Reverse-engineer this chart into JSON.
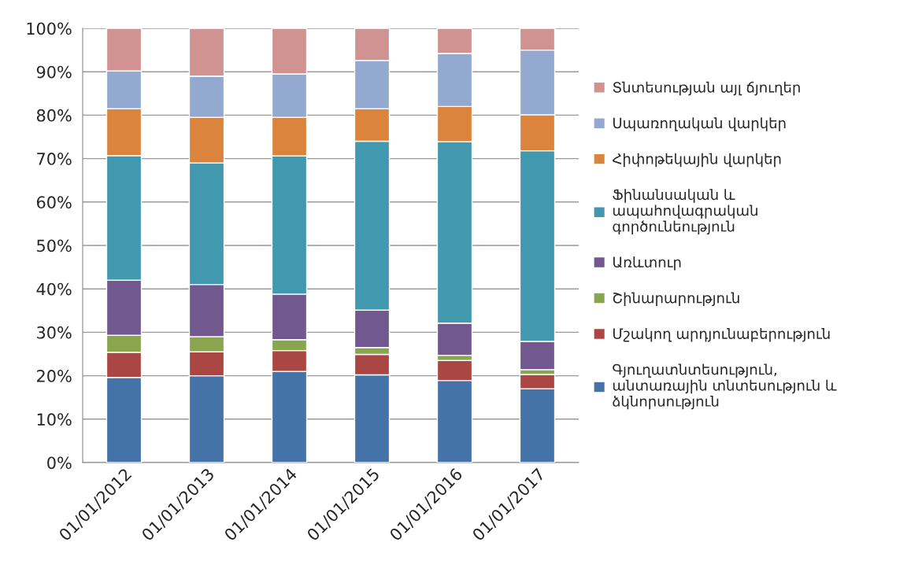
{
  "chart_data": {
    "type": "bar",
    "stacked": true,
    "categories": [
      "01/01/2012",
      "01/01/2013",
      "01/01/2014",
      "01/01/2015",
      "01/01/2016",
      "01/01/2017"
    ],
    "series": [
      {
        "name": "Գյուղատնտեսություն,\nանտառային տնտեսություն և\nձկնորսություն",
        "color": "#4572a7",
        "values": [
          19.6,
          20.0,
          21.0,
          20.2,
          18.9,
          17.0
        ]
      },
      {
        "name": "Մշակող արդյունաբերություն",
        "color": "#aa4643",
        "values": [
          5.8,
          5.5,
          4.8,
          4.7,
          4.6,
          3.3
        ]
      },
      {
        "name": "Շինարարություն",
        "color": "#89a54e",
        "values": [
          3.9,
          3.5,
          2.5,
          1.6,
          1.2,
          1.1
        ]
      },
      {
        "name": "Առևտուր",
        "color": "#71588f",
        "values": [
          12.7,
          12.0,
          10.5,
          8.6,
          7.4,
          6.5
        ]
      },
      {
        "name": "Ֆինանսական և\nապահովագրական\nգործունեություն",
        "color": "#4198af",
        "values": [
          28.7,
          28.0,
          31.8,
          38.9,
          41.8,
          43.9
        ]
      },
      {
        "name": "Հիփոթեկային վարկեր",
        "color": "#db843d",
        "values": [
          10.8,
          10.5,
          8.9,
          7.5,
          8.1,
          8.3
        ]
      },
      {
        "name": "Սպառողական վարկեր",
        "color": "#93a9cf",
        "values": [
          8.7,
          9.5,
          10.0,
          11.1,
          12.2,
          14.9
        ]
      },
      {
        "name": "Տնտեսության այլ ճյուղեր",
        "color": "#d19392",
        "values": [
          9.8,
          11.0,
          10.5,
          7.4,
          5.8,
          5.0
        ]
      }
    ],
    "ylim": [
      0,
      100
    ],
    "yticks": [
      {
        "value": 0,
        "label": "0%"
      },
      {
        "value": 10,
        "label": "10%"
      },
      {
        "value": 20,
        "label": "20%"
      },
      {
        "value": 30,
        "label": "30%"
      },
      {
        "value": 40,
        "label": "40%"
      },
      {
        "value": 50,
        "label": "50%"
      },
      {
        "value": 60,
        "label": "60%"
      },
      {
        "value": 70,
        "label": "70%"
      },
      {
        "value": 80,
        "label": "80%"
      },
      {
        "value": 90,
        "label": "90%"
      },
      {
        "value": 100,
        "label": "100%"
      }
    ],
    "grid": "y",
    "legend": "right"
  }
}
